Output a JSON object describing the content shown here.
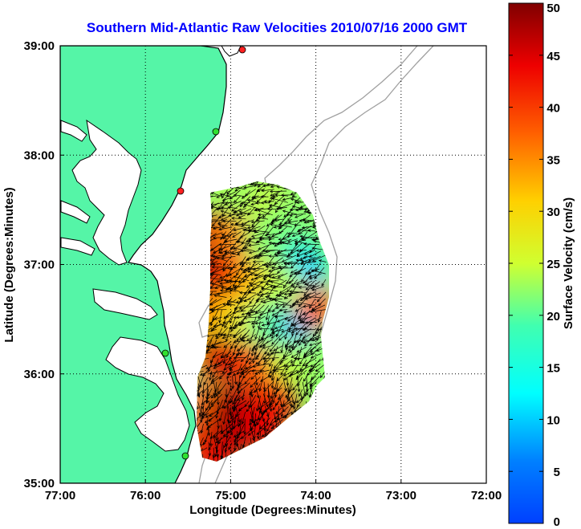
{
  "chart_data": {
    "type": "heatmap",
    "title": "Southern Mid-Atlantic Raw Velocities 2010/07/16 2000 GMT",
    "xlabel": "Longitude (Degrees:Minutes)",
    "ylabel": "Latitude (Degrees:Minutes)",
    "xlim": [
      -77,
      -72
    ],
    "ylim": [
      35,
      39
    ],
    "x_ticks": [
      -77,
      -76,
      -75,
      -74,
      -73,
      -72
    ],
    "x_tick_labels": [
      "77:00",
      "76:00",
      "75:00",
      "74:00",
      "73:00",
      "72:00"
    ],
    "y_ticks": [
      35,
      36,
      37,
      38,
      39
    ],
    "y_tick_labels": [
      "35:00",
      "36:00",
      "37:00",
      "38:00",
      "39:00"
    ],
    "grid": "dotted",
    "colorbar": {
      "label": "Surface Velocity (cm/s)",
      "range": [
        0,
        50
      ],
      "ticks": [
        0,
        5,
        10,
        15,
        20,
        25,
        30,
        35,
        40,
        45,
        50
      ],
      "tick_labels": [
        "0",
        "5",
        "10",
        "15",
        "20",
        "25",
        "30",
        "35",
        "40",
        "45",
        "50"
      ],
      "colormap": "jet"
    },
    "colors": {
      "land": "#55f5a7",
      "coast": "#000000",
      "bathymetry": "#a0a0a0",
      "title": "#0000ff"
    },
    "field_extent": {
      "lon": [
        -75.65,
        -73.85
      ],
      "lat": [
        35.15,
        37.85
      ]
    },
    "velocity_samples": [
      {
        "lon": -74.95,
        "lat": 37.7,
        "speed": 24
      },
      {
        "lon": -74.75,
        "lat": 37.6,
        "speed": 22
      },
      {
        "lon": -74.55,
        "lat": 37.55,
        "speed": 26
      },
      {
        "lon": -74.4,
        "lat": 37.4,
        "speed": 22
      },
      {
        "lon": -75.2,
        "lat": 37.3,
        "speed": 45
      },
      {
        "lon": -74.95,
        "lat": 37.25,
        "speed": 35
      },
      {
        "lon": -74.6,
        "lat": 37.2,
        "speed": 22
      },
      {
        "lon": -74.2,
        "lat": 37.1,
        "speed": 18
      },
      {
        "lon": -74.1,
        "lat": 36.95,
        "speed": 10
      },
      {
        "lon": -75.3,
        "lat": 36.95,
        "speed": 47
      },
      {
        "lon": -75.0,
        "lat": 36.9,
        "speed": 42
      },
      {
        "lon": -74.7,
        "lat": 36.85,
        "speed": 32
      },
      {
        "lon": -74.4,
        "lat": 36.8,
        "speed": 24
      },
      {
        "lon": -75.45,
        "lat": 36.6,
        "speed": 40
      },
      {
        "lon": -75.15,
        "lat": 36.55,
        "speed": 34
      },
      {
        "lon": -74.85,
        "lat": 36.5,
        "speed": 28
      },
      {
        "lon": -74.55,
        "lat": 36.45,
        "speed": 20
      },
      {
        "lon": -74.2,
        "lat": 36.45,
        "speed": 9
      },
      {
        "lon": -74.0,
        "lat": 36.6,
        "speed": 38
      },
      {
        "lon": -75.5,
        "lat": 36.2,
        "speed": 30
      },
      {
        "lon": -75.2,
        "lat": 36.15,
        "speed": 46
      },
      {
        "lon": -74.9,
        "lat": 36.1,
        "speed": 44
      },
      {
        "lon": -74.6,
        "lat": 36.05,
        "speed": 38
      },
      {
        "lon": -74.3,
        "lat": 36.1,
        "speed": 24
      },
      {
        "lon": -75.6,
        "lat": 35.8,
        "speed": 16
      },
      {
        "lon": -75.35,
        "lat": 35.75,
        "speed": 36
      },
      {
        "lon": -75.05,
        "lat": 35.7,
        "speed": 48
      },
      {
        "lon": -74.75,
        "lat": 35.7,
        "speed": 46
      },
      {
        "lon": -74.45,
        "lat": 35.75,
        "speed": 42
      },
      {
        "lon": -75.35,
        "lat": 35.4,
        "speed": 40
      },
      {
        "lon": -75.1,
        "lat": 35.35,
        "speed": 50
      },
      {
        "lon": -74.85,
        "lat": 35.45,
        "speed": 47
      },
      {
        "lon": -74.6,
        "lat": 35.5,
        "speed": 44
      },
      {
        "lon": -75.2,
        "lat": 35.2,
        "speed": 44
      }
    ]
  }
}
